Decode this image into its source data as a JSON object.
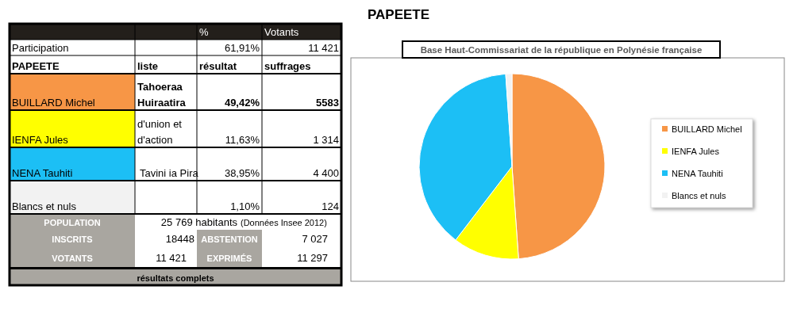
{
  "chart_data": [
    {
      "type": "other",
      "title": "PAPEETE",
      "annotations": [
        "%",
        "Votants",
        "Participation",
        "61,91%",
        "11 421",
        "PAPEETE",
        "liste",
        "résultat",
        "suffrages",
        "BUILLARD Michel",
        "Tahoeraa Huiraatira",
        "49,42%",
        "5583",
        "IENFA Jules",
        "d'union et d'action",
        "11,63%",
        "1 314",
        "NENA Tauhiti",
        "Tavini ia Pira",
        "38,95%",
        "4 400",
        "Blancs et nuls",
        "1,10%",
        "124",
        "POPULATION",
        "25 769 habitants",
        "(Données Insee 2012)",
        "INSCRITS",
        "18448",
        "ABSTENTION",
        "7 027",
        "VOTANTS",
        "11 421",
        "EXPRIMÉS",
        "11 297",
        "résultats complets"
      ]
    },
    {
      "type": "pie",
      "title": "Base Haut-Commissariat de la république en Polynésie française",
      "categories": [
        "BUILLARD Michel",
        "IENFA Jules",
        "NENA Tauhiti",
        "Blancs et nuls"
      ],
      "values": [
        49.42,
        11.63,
        38.95,
        1.1
      ],
      "colors": [
        "#f79646",
        "#ffff00",
        "#1cbff5",
        "#f2f2f2"
      ],
      "legend": "right"
    }
  ]
}
